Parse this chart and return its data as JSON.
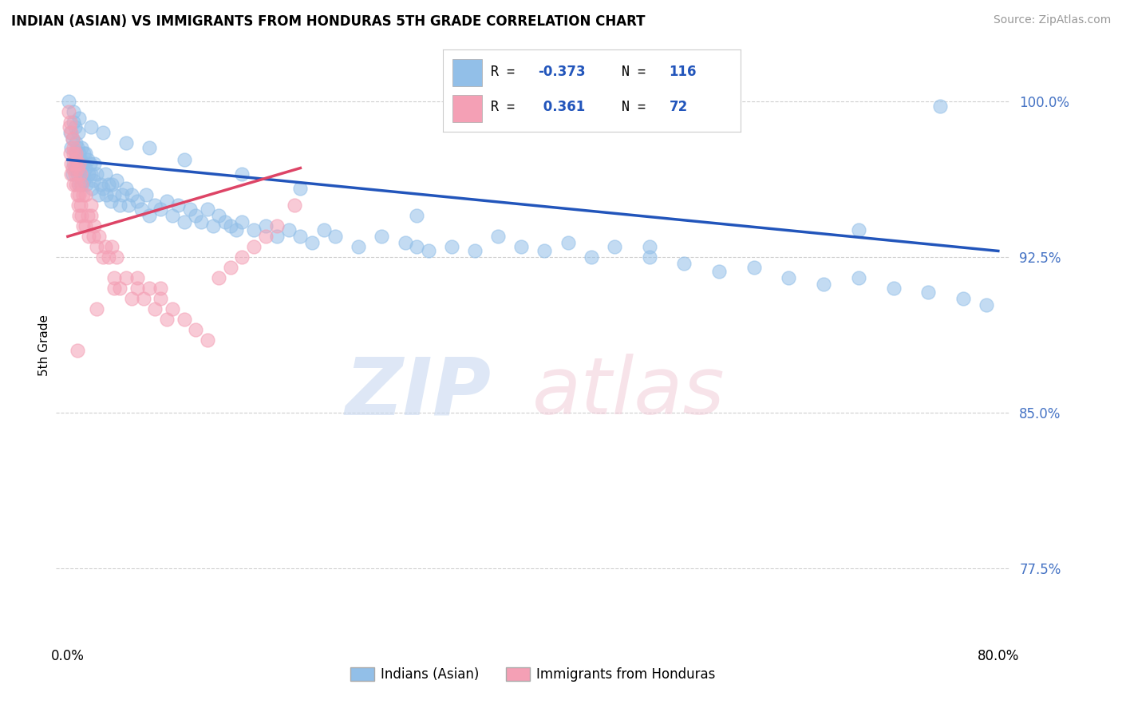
{
  "title": "INDIAN (ASIAN) VS IMMIGRANTS FROM HONDURAS 5TH GRADE CORRELATION CHART",
  "source_text": "Source: ZipAtlas.com",
  "ylabel": "5th Grade",
  "xlim": [
    -1.0,
    81.0
  ],
  "ylim": [
    74.0,
    102.5
  ],
  "yticks": [
    77.5,
    85.0,
    92.5,
    100.0
  ],
  "ytick_labels": [
    "77.5%",
    "85.0%",
    "92.5%",
    "100.0%"
  ],
  "xticks": [
    0.0,
    10.0,
    20.0,
    30.0,
    40.0,
    50.0,
    60.0,
    70.0,
    80.0
  ],
  "xtick_labels": [
    "0.0%",
    "",
    "",
    "",
    "",
    "",
    "",
    "",
    "80.0%"
  ],
  "blue_color": "#92BFE8",
  "pink_color": "#F4A0B5",
  "blue_line_color": "#2255BB",
  "pink_line_color": "#DD4466",
  "legend_label1": "Indians (Asian)",
  "legend_label2": "Immigrants from Honduras",
  "background_color": "#FFFFFF",
  "grid_color": "#BBBBBB",
  "blue_line_x0": 0.0,
  "blue_line_y0": 97.2,
  "blue_line_x1": 80.0,
  "blue_line_y1": 92.8,
  "pink_line_x0": 0.0,
  "pink_line_y0": 93.5,
  "pink_line_x1": 20.0,
  "pink_line_y1": 96.8
}
